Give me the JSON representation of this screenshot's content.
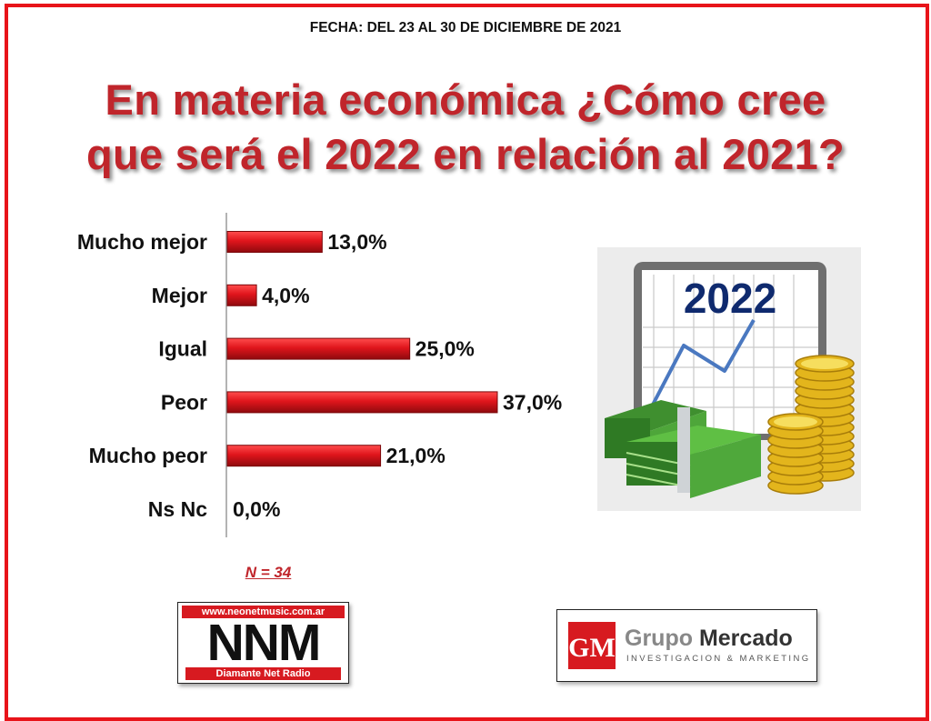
{
  "header": {
    "date": "FECHA: DEL 23 AL 30 DE DICIEMBRE DE 2021",
    "title_line1": "En materia económica ¿Cómo cree",
    "title_line2": "que será el 2022 en relación al 2021?"
  },
  "chart_data": {
    "type": "bar",
    "orientation": "horizontal",
    "categories": [
      "Mucho mejor",
      "Mejor",
      "Igual",
      "Peor",
      "Mucho peor",
      "Ns Nc"
    ],
    "values": [
      13.0,
      4.0,
      25.0,
      37.0,
      21.0,
      0.0
    ],
    "value_labels": [
      "13,0%",
      "4,0%",
      "25,0%",
      "37,0%",
      "21,0%",
      "0,0%"
    ],
    "xlim": [
      0,
      37
    ],
    "bar_color": "#e0151c",
    "grid": false
  },
  "sample_note": "N = 34",
  "illustration": {
    "year": "2022",
    "icons": [
      "chart-board-icon",
      "money-stack-icon",
      "coin-stack-icon"
    ]
  },
  "logos": {
    "nnm": {
      "url": "www.neonetmusic.com.ar",
      "name": "NNM",
      "subtitle": "Diamante Net Radio"
    },
    "grupo_mercado": {
      "monogram": "GM",
      "name_part1": "Grupo",
      "name_part2": "Mercado",
      "tagline": "INVESTIGACION & MARKETING"
    }
  },
  "colors": {
    "accent": "#e8141a",
    "title": "#c0252b",
    "year": "#0f2a6e"
  }
}
